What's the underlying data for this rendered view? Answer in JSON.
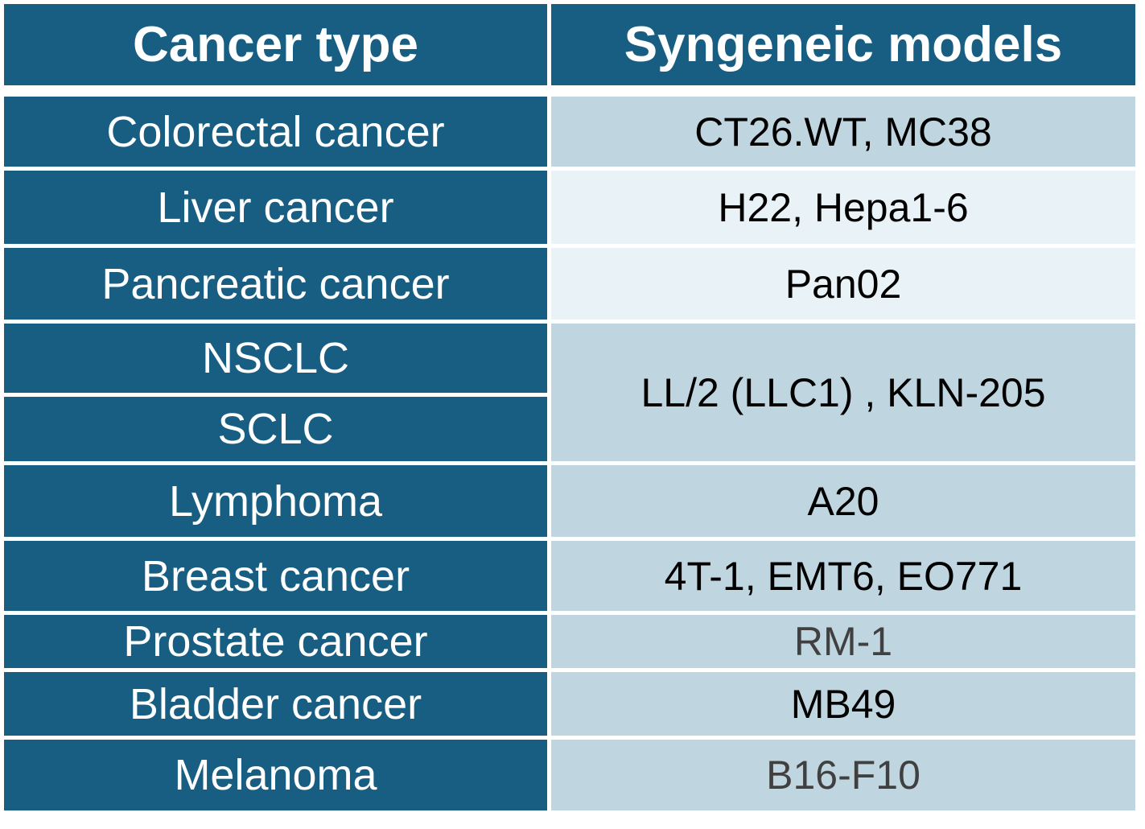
{
  "table": {
    "headers": {
      "cancer_type": "Cancer type",
      "syngeneic_models": "Syngeneic models"
    },
    "rows": [
      {
        "cancer_type": "Colorectal cancer",
        "models": "CT26.WT, MC38"
      },
      {
        "cancer_type": "Liver cancer",
        "models": "H22, Hepa1-6"
      },
      {
        "cancer_type": "Pancreatic cancer",
        "models": "Pan02"
      },
      {
        "cancer_type": "NSCLC",
        "models": "LL/2 (LLC1) , KLN-205"
      },
      {
        "cancer_type": "SCLC"
      },
      {
        "cancer_type": "Lymphoma",
        "models": "A20"
      },
      {
        "cancer_type": "Breast cancer",
        "models": "4T-1, EMT6, EO771"
      },
      {
        "cancer_type": "Prostate cancer",
        "models": "RM-1"
      },
      {
        "cancer_type": "Bladder cancer",
        "models": "MB49"
      },
      {
        "cancer_type": "Melanoma",
        "models": "B16-F10"
      }
    ],
    "colors": {
      "header_bg": "#175e82",
      "header_text": "#ffffff",
      "model_bg_medium": "#bfd6e1",
      "model_bg_light": "#e9f2f6",
      "model_text": "#000000",
      "model_text_muted": "#404040"
    }
  }
}
